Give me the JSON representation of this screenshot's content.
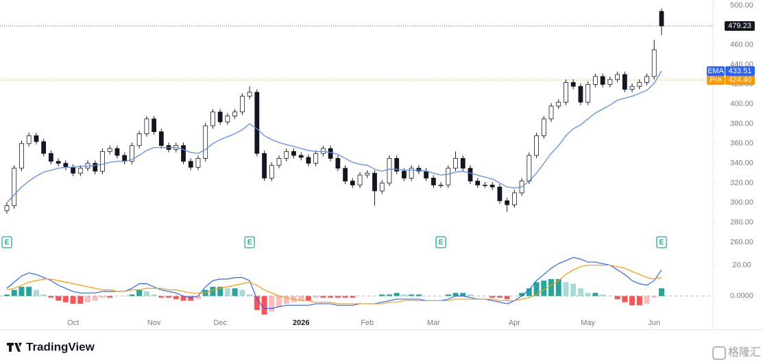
{
  "chart_data": [
    {
      "type": "candlestick",
      "open": [
        292,
        297,
        335,
        360,
        368,
        362,
        350,
        342,
        340,
        336,
        330,
        335,
        340,
        332,
        352,
        355,
        348,
        342,
        358,
        370,
        385,
        372,
        358,
        354,
        358,
        342,
        336,
        345,
        378,
        392,
        382,
        388,
        392,
        408,
        412,
        350,
        325,
        338,
        345,
        352,
        348,
        346,
        340,
        350,
        355,
        345,
        335,
        322,
        318,
        328,
        330,
        312,
        320,
        345,
        332,
        325,
        335,
        332,
        325,
        318,
        318,
        335,
        345,
        335,
        322,
        318,
        318,
        316,
        302,
        298,
        310,
        322,
        348,
        368,
        385,
        398,
        402,
        422,
        418,
        402,
        420,
        428,
        420,
        425,
        430,
        415,
        418,
        422,
        428,
        494
      ],
      "high": [
        300,
        338,
        363,
        371,
        371,
        365,
        353,
        345,
        343,
        339,
        338,
        343,
        343,
        355,
        358,
        358,
        351,
        361,
        373,
        388,
        388,
        375,
        361,
        361,
        361,
        345,
        348,
        381,
        395,
        395,
        391,
        395,
        411,
        418,
        415,
        353,
        341,
        348,
        355,
        355,
        351,
        349,
        353,
        358,
        358,
        348,
        338,
        325,
        331,
        333,
        333,
        323,
        348,
        348,
        335,
        338,
        338,
        335,
        328,
        321,
        338,
        352,
        348,
        338,
        325,
        321,
        321,
        319,
        305,
        313,
        325,
        351,
        371,
        388,
        401,
        405,
        425,
        425,
        421,
        423,
        431,
        431,
        428,
        433,
        433,
        421,
        425,
        431,
        465,
        497
      ],
      "low": [
        289,
        294,
        332,
        357,
        359,
        347,
        339,
        337,
        333,
        327,
        327,
        332,
        329,
        329,
        349,
        345,
        339,
        339,
        355,
        367,
        369,
        355,
        351,
        351,
        339,
        333,
        333,
        342,
        375,
        379,
        379,
        385,
        389,
        405,
        347,
        322,
        322,
        335,
        342,
        345,
        343,
        337,
        337,
        347,
        342,
        332,
        319,
        315,
        315,
        325,
        297,
        309,
        317,
        329,
        322,
        322,
        329,
        322,
        315,
        315,
        315,
        332,
        332,
        319,
        315,
        315,
        313,
        299,
        291,
        295,
        307,
        319,
        345,
        365,
        382,
        395,
        399,
        415,
        399,
        399,
        417,
        417,
        417,
        422,
        412,
        412,
        415,
        419,
        425,
        470
      ],
      "close": [
        297,
        335,
        360,
        368,
        362,
        350,
        342,
        340,
        336,
        330,
        335,
        340,
        332,
        352,
        355,
        348,
        342,
        358,
        370,
        385,
        372,
        358,
        354,
        358,
        342,
        336,
        345,
        378,
        392,
        382,
        388,
        392,
        408,
        412,
        350,
        325,
        338,
        345,
        352,
        348,
        346,
        340,
        350,
        355,
        345,
        335,
        322,
        318,
        328,
        330,
        312,
        320,
        345,
        332,
        325,
        335,
        332,
        325,
        318,
        318,
        335,
        345,
        335,
        322,
        318,
        318,
        316,
        302,
        298,
        310,
        322,
        348,
        368,
        385,
        398,
        402,
        422,
        418,
        402,
        420,
        428,
        420,
        425,
        430,
        415,
        418,
        422,
        428,
        455,
        479.23
      ],
      "up_color": "#ffffff",
      "down_color": "#131722",
      "ylim": [
        260,
        500
      ],
      "yticks": [
        {
          "value": 260,
          "label": "260.00"
        },
        {
          "value": 280,
          "label": "280.00"
        },
        {
          "value": 300,
          "label": "300.00"
        },
        {
          "value": 320,
          "label": "320.00"
        },
        {
          "value": 340,
          "label": "340.00"
        },
        {
          "value": 360,
          "label": "360.00"
        },
        {
          "value": 380,
          "label": "380.00"
        },
        {
          "value": 400,
          "label": "400.00"
        },
        {
          "value": 420,
          "label": "420.00"
        },
        {
          "value": 440,
          "label": "440.00"
        },
        {
          "value": 460,
          "label": "460.00"
        },
        {
          "value": 480,
          "label": "480.00"
        },
        {
          "value": 500,
          "label": "500.00"
        }
      ],
      "series": [
        {
          "name": "EMA",
          "color": "#5b8def",
          "values": [
            300,
            308,
            316,
            322,
            327,
            331,
            333,
            335,
            336,
            336,
            337,
            337,
            338,
            339,
            341,
            342,
            342,
            344,
            348,
            353,
            356,
            356,
            356,
            356,
            354,
            351,
            350,
            354,
            360,
            364,
            367,
            370,
            374,
            380,
            375,
            368,
            364,
            361,
            359,
            357,
            355,
            353,
            352,
            352,
            351,
            349,
            345,
            341,
            339,
            338,
            334,
            332,
            334,
            334,
            333,
            333,
            333,
            332,
            330,
            328,
            329,
            331,
            332,
            330,
            328,
            326,
            324,
            320,
            316,
            315,
            316,
            322,
            330,
            340,
            350,
            358,
            368,
            375,
            379,
            385,
            391,
            395,
            399,
            404,
            406,
            408,
            411,
            414,
            421,
            433.51
          ]
        }
      ],
      "reference_lines": [
        {
          "name": "Pre",
          "value": 424.4,
          "label": "424.40",
          "color": "#ff9800"
        }
      ],
      "earnings": {
        "label": "E",
        "x": [
          0,
          33,
          59,
          89
        ]
      }
    },
    {
      "type": "macd",
      "categories": [
        null,
        null,
        null,
        null,
        null,
        null,
        null,
        null,
        null,
        "Oct",
        null,
        null,
        null,
        null,
        null,
        null,
        null,
        null,
        null,
        null,
        "Nov",
        null,
        null,
        null,
        null,
        null,
        null,
        null,
        null,
        "Dec",
        null,
        null,
        null,
        null,
        null,
        null,
        null,
        null,
        null,
        null,
        "2026",
        null,
        null,
        null,
        null,
        null,
        null,
        null,
        null,
        "Feb",
        null,
        null,
        null,
        null,
        null,
        null,
        null,
        null,
        "Mar",
        null,
        null,
        null,
        null,
        null,
        null,
        null,
        null,
        null,
        null,
        "Apr",
        null,
        null,
        null,
        null,
        null,
        null,
        null,
        null,
        null,
        "May",
        null,
        null,
        null,
        null,
        null,
        null,
        null,
        null,
        "Jun",
        null
      ],
      "ylim": [
        -13,
        30
      ],
      "yticks": [
        {
          "value": 0,
          "label": "0.0000"
        },
        {
          "value": 20,
          "label": "20.00"
        }
      ],
      "zero_line": true,
      "series": [
        {
          "color": "#2962ff",
          "values": [
            5,
            9,
            13,
            15,
            14,
            12,
            10,
            7,
            5,
            3,
            2,
            2,
            2,
            3,
            3,
            3,
            3,
            5,
            8,
            8,
            6,
            4,
            3,
            2,
            0,
            -1,
            0,
            6,
            10,
            11,
            11,
            12,
            12,
            10,
            -2,
            -8,
            -8,
            -7,
            -6,
            -6,
            -6,
            -6,
            -5,
            -5,
            -5,
            -6,
            -6,
            -6,
            -5,
            -5,
            -5,
            -4,
            -3,
            -2,
            -2,
            -2,
            -2,
            -3,
            -3,
            -3,
            -2,
            0,
            0,
            -1,
            -2,
            -2,
            -3,
            -4,
            -5,
            -3,
            0,
            4,
            10,
            14,
            18,
            21,
            23,
            25,
            24,
            22,
            22,
            21,
            20,
            17,
            14,
            10,
            8,
            7,
            10,
            17
          ]
        },
        {
          "color": "#ff9800",
          "values": [
            4,
            5,
            7,
            9,
            10,
            11,
            11,
            10,
            9,
            8,
            7,
            6,
            5,
            4,
            4,
            3,
            3,
            4,
            4,
            5,
            5,
            5,
            4,
            4,
            3,
            2,
            2,
            2,
            4,
            5,
            6,
            7,
            8,
            9,
            7,
            4,
            2,
            0,
            -1,
            -2,
            -3,
            -3,
            -4,
            -4,
            -4,
            -5,
            -5,
            -5,
            -5,
            -5,
            -5,
            -5,
            -4,
            -4,
            -3,
            -3,
            -3,
            -3,
            -3,
            -3,
            -3,
            -2,
            -2,
            -2,
            -2,
            -2,
            -2,
            -3,
            -3,
            -3,
            -2,
            -1,
            1,
            4,
            7,
            10,
            14,
            17,
            19,
            20,
            20,
            20,
            20,
            19,
            18,
            16,
            14,
            12,
            11,
            12
          ]
        }
      ],
      "histogram": {
        "color_up": "#26a69a",
        "color_down": "#ff5252",
        "values": [
          1,
          4,
          6,
          6,
          4,
          1,
          -1,
          -3,
          -4,
          -5,
          -5,
          -4,
          -3,
          -1,
          -1,
          0,
          0,
          1,
          4,
          3,
          1,
          -1,
          -1,
          -2,
          -3,
          -3,
          -2,
          4,
          6,
          6,
          5,
          5,
          4,
          1,
          -9,
          -12,
          -10,
          -7,
          -5,
          -4,
          -3,
          -3,
          -1,
          -1,
          -1,
          -1,
          -1,
          -1,
          0,
          0,
          0,
          1,
          1,
          2,
          1,
          1,
          1,
          0,
          0,
          0,
          1,
          2,
          2,
          1,
          0,
          0,
          -1,
          -1,
          -2,
          0,
          2,
          5,
          9,
          10,
          11,
          11,
          9,
          8,
          5,
          2,
          2,
          1,
          0,
          -2,
          -4,
          -6,
          -6,
          -5,
          -1,
          5
        ]
      }
    }
  ],
  "brand": "TradingView",
  "watermark": "格隆汇"
}
